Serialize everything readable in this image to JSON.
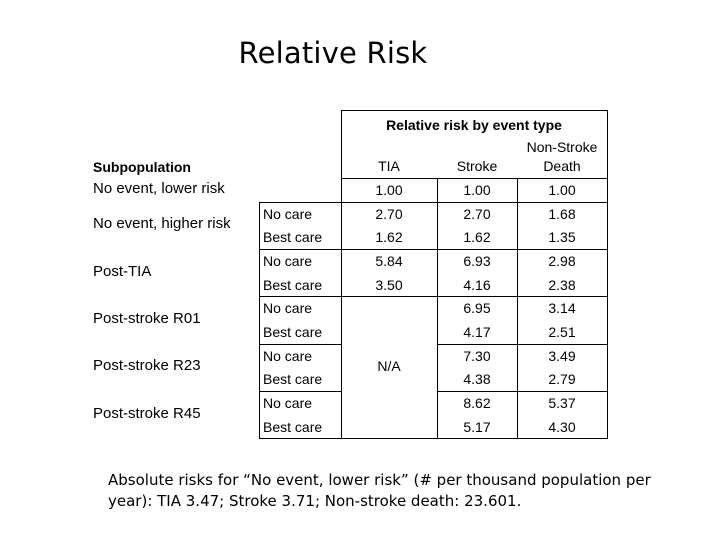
{
  "title": "Relative Risk",
  "table": {
    "group_header": "Relative risk by event type",
    "subpopulation_header": "Subpopulation",
    "columns": [
      "TIA",
      "Stroke",
      "Non-Stroke Death"
    ],
    "column_lines": [
      [
        "TIA"
      ],
      [
        "Stroke"
      ],
      [
        "Non-Stroke",
        "Death"
      ]
    ],
    "na_label": "N/A",
    "groups": [
      {
        "label": "No event, lower risk",
        "rows": [
          {
            "care": "",
            "tia": "1.00",
            "stroke": "1.00",
            "nsd": "1.00"
          }
        ]
      },
      {
        "label": "No event, higher risk",
        "rows": [
          {
            "care": "No care",
            "tia": "2.70",
            "stroke": "2.70",
            "nsd": "1.68"
          },
          {
            "care": "Best care",
            "tia": "1.62",
            "stroke": "1.62",
            "nsd": "1.35"
          }
        ]
      },
      {
        "label": "Post-TIA",
        "rows": [
          {
            "care": "No care",
            "tia": "5.84",
            "stroke": "6.93",
            "nsd": "2.98"
          },
          {
            "care": "Best care",
            "tia": "3.50",
            "stroke": "4.16",
            "nsd": "2.38"
          }
        ]
      },
      {
        "label": "Post-stroke R01",
        "rows": [
          {
            "care": "No care",
            "tia": "",
            "stroke": "6.95",
            "nsd": "3.14"
          },
          {
            "care": "Best care",
            "tia": "",
            "stroke": "4.17",
            "nsd": "2.51"
          }
        ]
      },
      {
        "label": "Post-stroke R23",
        "rows": [
          {
            "care": "No care",
            "tia": "",
            "stroke": "7.30",
            "nsd": "3.49"
          },
          {
            "care": "Best care",
            "tia": "",
            "stroke": "4.38",
            "nsd": "2.79"
          }
        ]
      },
      {
        "label": "Post-stroke R45",
        "rows": [
          {
            "care": "No care",
            "tia": "",
            "stroke": "8.62",
            "nsd": "5.37"
          },
          {
            "care": "Best care",
            "tia": "",
            "stroke": "5.17",
            "nsd": "4.30"
          }
        ]
      }
    ]
  },
  "absolute_risk_text": "Absolute risks for “No event, lower risk” (# per thousand population per year):  TIA  3.47; Stroke 3.71; Non-stroke death: 23.601."
}
